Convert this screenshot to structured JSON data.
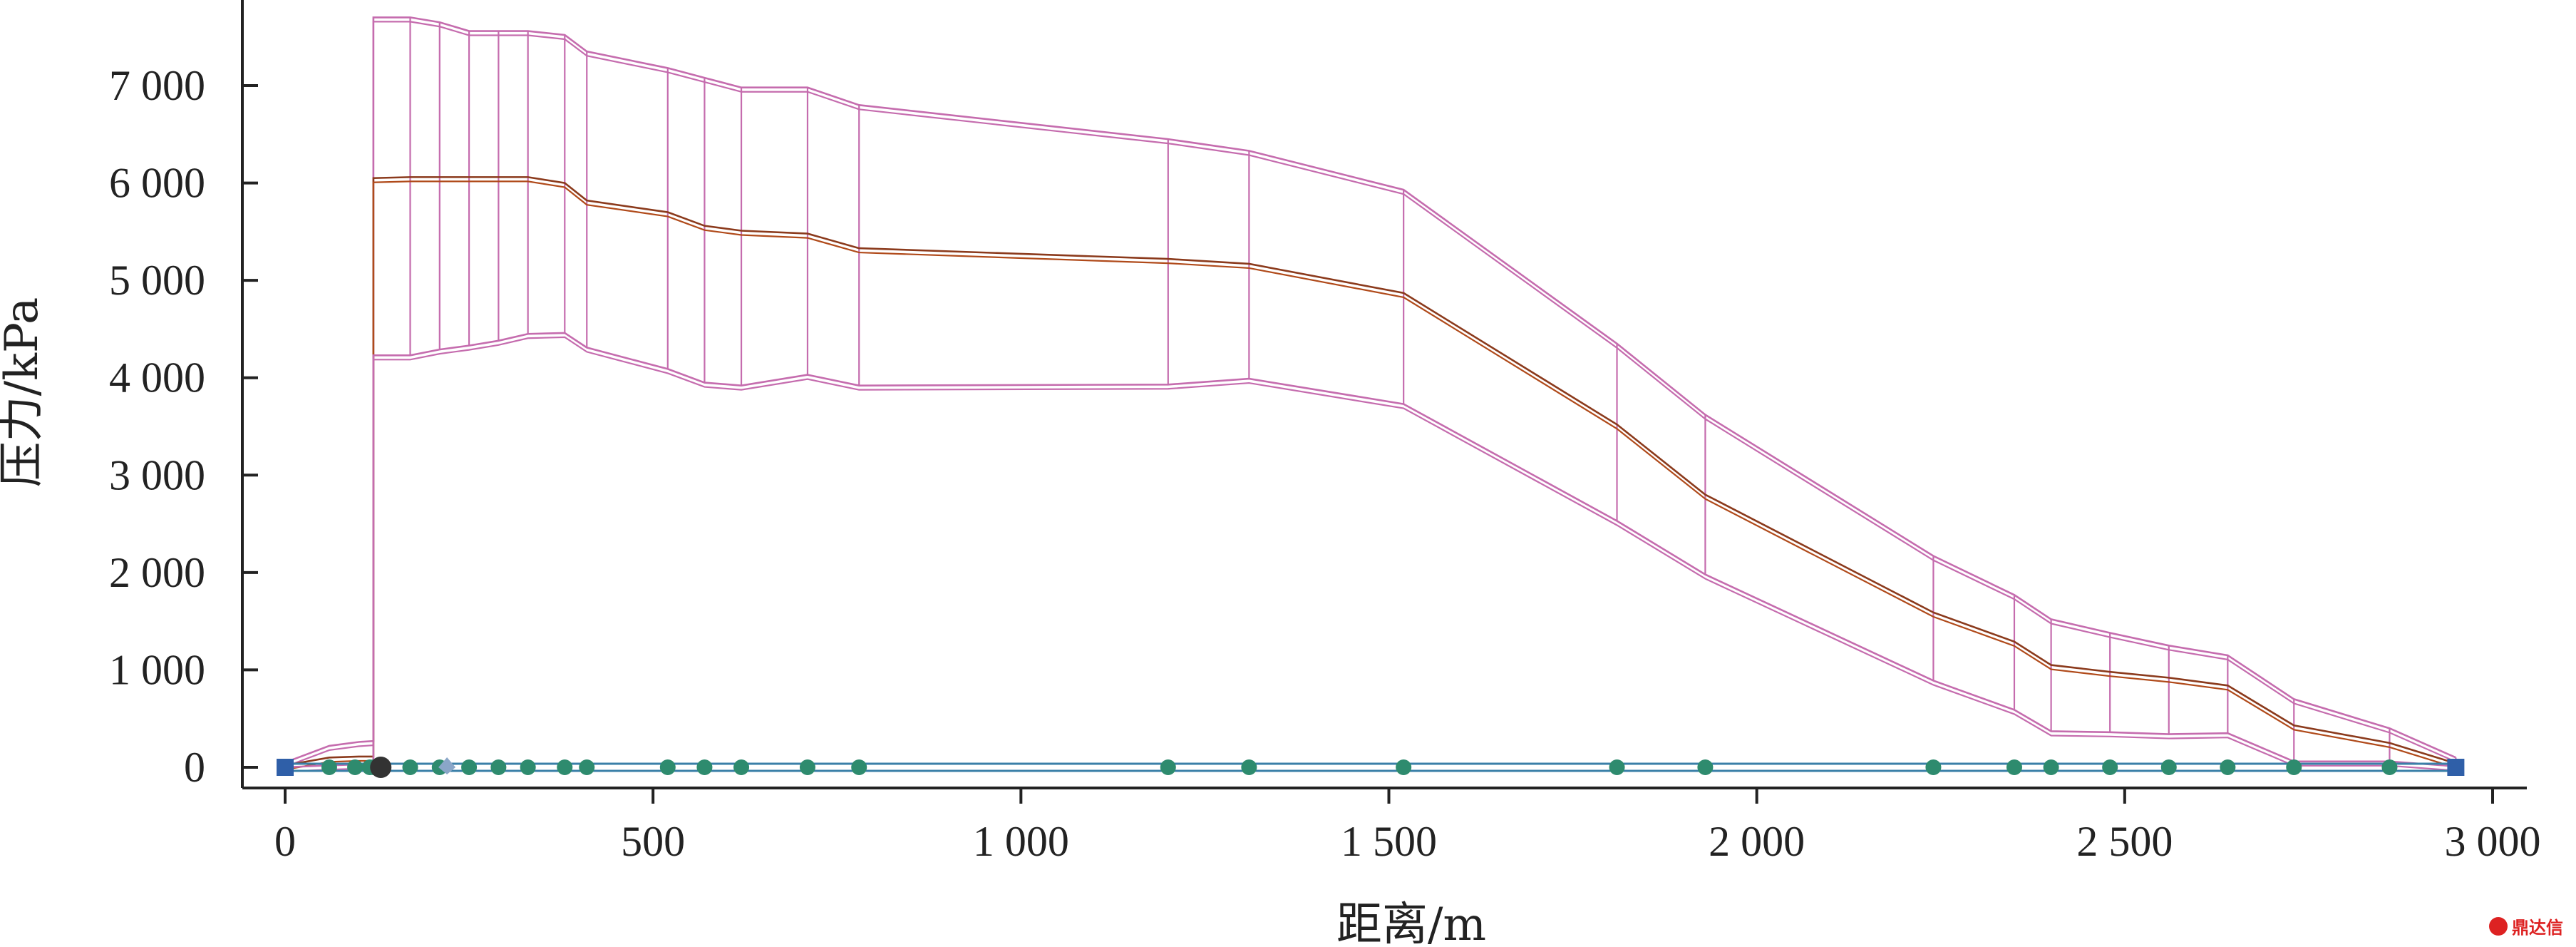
{
  "chart_data": {
    "type": "line",
    "xlabel": "距离/m",
    "ylabel": "压力/kPa",
    "xlim": [
      0,
      3000
    ],
    "ylim": [
      0,
      7500
    ],
    "x_ticks": [
      0,
      500,
      1000,
      1500,
      2000,
      2500,
      3000
    ],
    "x_tick_labels": [
      "0",
      "500",
      "1 000",
      "1 500",
      "2 000",
      "2 500",
      "3 000"
    ],
    "y_ticks": [
      0,
      1000,
      2000,
      3000,
      4000,
      5000,
      6000,
      7000
    ],
    "y_tick_labels": [
      "0",
      "1 000",
      "2 000",
      "3 000",
      "4 000",
      "5 000",
      "6 000",
      "7 000"
    ],
    "grid": false,
    "series": [
      {
        "role": "upper-envelope",
        "color": "#c56cae",
        "x": [
          0,
          60,
          100,
          120,
          120,
          170,
          210,
          250,
          290,
          330,
          380,
          410,
          520,
          570,
          620,
          710,
          780,
          1200,
          1310,
          1520,
          1810,
          1930,
          2240,
          2350,
          2400,
          2480,
          2560,
          2640,
          2730,
          2860,
          2950
        ],
        "y": [
          50,
          220,
          260,
          270,
          7700,
          7700,
          7650,
          7560,
          7560,
          7560,
          7520,
          7350,
          7180,
          7080,
          6980,
          6980,
          6800,
          6450,
          6330,
          5930,
          4350,
          3620,
          2170,
          1770,
          1520,
          1380,
          1250,
          1150,
          700,
          400,
          100
        ]
      },
      {
        "role": "mean",
        "color": "#8b3a1c",
        "x": [
          0,
          60,
          100,
          120,
          120,
          170,
          210,
          250,
          290,
          330,
          380,
          410,
          520,
          570,
          620,
          710,
          780,
          1200,
          1310,
          1520,
          1810,
          1930,
          2240,
          2350,
          2400,
          2480,
          2560,
          2640,
          2730,
          2860,
          2950
        ],
        "y": [
          20,
          100,
          110,
          110,
          6050,
          6060,
          6060,
          6060,
          6060,
          6060,
          6000,
          5820,
          5700,
          5560,
          5510,
          5480,
          5330,
          5220,
          5170,
          4870,
          3520,
          2800,
          1590,
          1290,
          1050,
          980,
          920,
          840,
          430,
          250,
          40
        ]
      },
      {
        "role": "lower-envelope",
        "color": "#c56cae",
        "x": [
          0,
          60,
          100,
          120,
          120,
          170,
          210,
          250,
          290,
          330,
          380,
          410,
          520,
          570,
          620,
          710,
          780,
          1200,
          1310,
          1520,
          1810,
          1930,
          2240,
          2350,
          2400,
          2480,
          2560,
          2640,
          2730,
          2860,
          2950
        ],
        "y": [
          0,
          20,
          30,
          30,
          4230,
          4230,
          4290,
          4330,
          4380,
          4450,
          4460,
          4310,
          4090,
          3950,
          3920,
          4030,
          3920,
          3930,
          3990,
          3730,
          2530,
          1980,
          890,
          590,
          370,
          360,
          340,
          350,
          60,
          60,
          10
        ]
      }
    ],
    "baseline_color": "#3a7fa8",
    "node_color": "#2e8b6e",
    "node_x": [
      60,
      95,
      115,
      120,
      170,
      210,
      250,
      290,
      330,
      380,
      410,
      520,
      570,
      620,
      710,
      780,
      1200,
      1310,
      1520,
      1810,
      1930,
      2240,
      2350,
      2400,
      2480,
      2560,
      2640,
      2730,
      2860
    ],
    "end_marker_color": "#2f5fa8",
    "end_marker_x": [
      0,
      2950
    ],
    "watermark_text": "鼎达信"
  }
}
